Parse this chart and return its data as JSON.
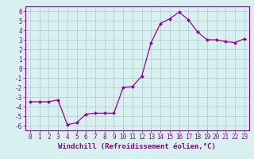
{
  "x": [
    0,
    1,
    2,
    3,
    4,
    5,
    6,
    7,
    8,
    9,
    10,
    11,
    12,
    13,
    14,
    15,
    16,
    17,
    18,
    19,
    20,
    21,
    22,
    23
  ],
  "y": [
    -3.5,
    -3.5,
    -3.5,
    -3.3,
    -5.9,
    -5.7,
    -4.8,
    -4.7,
    -4.7,
    -4.7,
    -2.0,
    -1.9,
    -0.8,
    2.7,
    4.7,
    5.2,
    5.9,
    5.1,
    3.8,
    3.0,
    3.0,
    2.8,
    2.7,
    3.1
  ],
  "line_color": "#990099",
  "marker": "D",
  "marker_size": 2.0,
  "bg_color": "#d8f0f0",
  "grid_color": "#b0c8c8",
  "xlabel": "Windchill (Refroidissement éolien,°C)",
  "ylim": [
    -6.5,
    6.5
  ],
  "xlim": [
    -0.5,
    23.5
  ],
  "yticks": [
    -6,
    -5,
    -4,
    -3,
    -2,
    -1,
    0,
    1,
    2,
    3,
    4,
    5,
    6
  ],
  "xticks": [
    0,
    1,
    2,
    3,
    4,
    5,
    6,
    7,
    8,
    9,
    10,
    11,
    12,
    13,
    14,
    15,
    16,
    17,
    18,
    19,
    20,
    21,
    22,
    23
  ],
  "tick_color": "#880088",
  "label_fontsize": 6.5,
  "tick_fontsize": 5.5,
  "linewidth": 0.9
}
